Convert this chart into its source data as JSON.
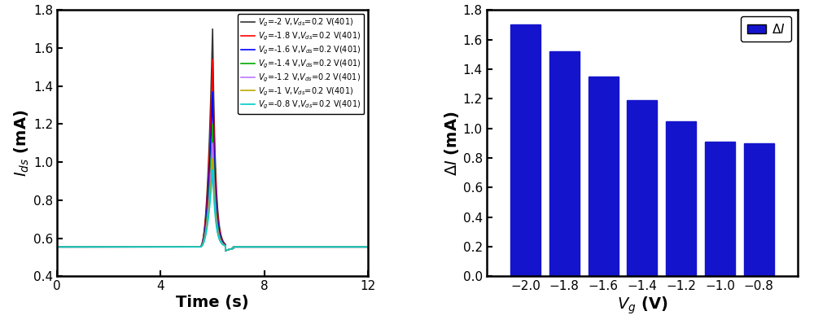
{
  "left_plot": {
    "xlabel": "Time (s)",
    "ylabel": "$I_{ds}$ (mA)",
    "xlim": [
      0,
      12
    ],
    "ylim": [
      0.4,
      1.8
    ],
    "yticks": [
      0.4,
      0.6,
      0.8,
      1.0,
      1.2,
      1.4,
      1.6,
      1.8
    ],
    "xticks": [
      0,
      4,
      8,
      12
    ],
    "baseline": 0.555,
    "peak_time": 6.0,
    "rise_start": 5.5,
    "fall_end": 6.8,
    "lines": [
      {
        "label": "$V_g$=-2 V,$V_{ds}$=0.2 V(401)",
        "color": "#333333",
        "peak": 1.7
      },
      {
        "label": "$V_g$=-1.8 V,$V_{ds}$=0.2 V(401)",
        "color": "#FF0000",
        "peak": 1.54
      },
      {
        "label": "$V_g$=-1.6 V,$V_{ds}$=0.2 V(401)",
        "color": "#0000FF",
        "peak": 1.37
      },
      {
        "label": "$V_g$=-1.4 V,$V_{ds}$=0.2 V(401)",
        "color": "#00AA00",
        "peak": 1.2
      },
      {
        "label": "$V_g$=-1.2 V,$V_{ds}$=0.2 V(401)",
        "color": "#BB77FF",
        "peak": 1.1
      },
      {
        "label": "$V_g$=-1 V,$V_{ds}$=0.2 V(401)",
        "color": "#BBAA00",
        "peak": 1.02
      },
      {
        "label": "$V_g$=-0.8 V,$V_{ds}$=0.2 V(401)",
        "color": "#00CCCC",
        "peak": 0.96
      }
    ]
  },
  "right_plot": {
    "xlabel": "$V_g$ (V)",
    "ylabel": "$\\Delta I$ (mA)",
    "xlim": [
      -2.2,
      -0.6
    ],
    "ylim": [
      0.0,
      1.8
    ],
    "yticks": [
      0.0,
      0.2,
      0.4,
      0.6,
      0.8,
      1.0,
      1.2,
      1.4,
      1.6,
      1.8
    ],
    "bar_color": "#1414CC",
    "legend_label": "$\\Delta I$",
    "categories": [
      -2.0,
      -1.8,
      -1.6,
      -1.4,
      -1.2,
      -1.0,
      -0.8
    ],
    "values": [
      1.7,
      1.52,
      1.35,
      1.19,
      1.05,
      0.91,
      0.9
    ],
    "bar_width": 0.155
  }
}
